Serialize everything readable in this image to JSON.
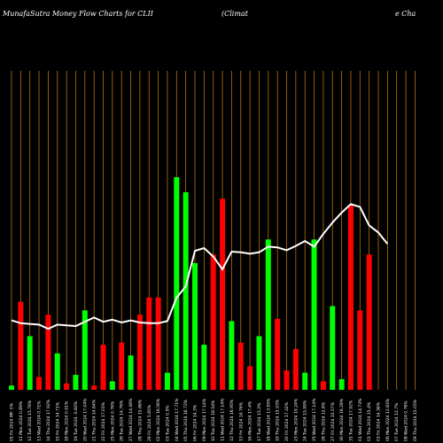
{
  "title_left": "MunafaSutra  Money Flow  Charts for CLII",
  "title_right_1": "(Climat",
  "title_right_2": "e  Cha",
  "chart_data": {
    "type": "bar",
    "bar_ylim": [
      0,
      100
    ],
    "line_ylim": [
      0,
      100
    ],
    "grid": "vertical",
    "colors": {
      "up": "#00ff00",
      "down": "#ff0000",
      "line": "#ffffff",
      "grid": "#b8730f",
      "background": "#000000"
    },
    "categories": [
      "05 Fri 2024 MF: 0%",
      "11 Mon 2024 0.89%",
      "12 Tue 2024 15.76%",
      "13 Wed 2024 0.71%",
      "14 Thu 2024 17.92%",
      "15 Fri 2024 14.71%",
      "18 Mon 2024 0.91%",
      "19 Tue 2024 -0.83%",
      "20 Wed 2024 17.04%",
      "21 Thu 2024 14.64%",
      "22 Fri 2024 17.03%",
      "25 Mon 2024 0.76%",
      "26 Tue 2024 14.76%",
      "27 Wed 2024 14.46%",
      "28 Thu 2024 15.86%",
      "29 Fri 2024 5.85%",
      "02 Mon 2024 16.56%",
      "03 Tue 2024 0.5%",
      "04 Wed 2024 17.71%",
      "05 Thu 2024 16.72%",
      "06 Fri 2024 14.3%",
      "09 Mon 2024 17.14%",
      "10 Tue 2024 18.54%",
      "11 Wed 2024 17.14%",
      "12 Thu 2024 16.95%",
      "13 Fri 2024 14.76%",
      "16 Mon 2024 17.4%",
      "17 Tue 2024 15.2%",
      "18 Wed 2024 13.95%",
      "19 Thu 2024 15.93%",
      "20 Fri 2024 17.32%",
      "23 Mon 2024 19.24%",
      "24 Tue 2024 15.99%",
      "25 Wed 2024 17.14%",
      "26 Thu 2024 12.6%",
      "27 Fri 2024 15.57%",
      "30 Mon 2024 16.28%",
      "31 Tue 2024 17.92%",
      "01 Wed 2024 14.73%",
      "02 Thu 2024 15.4%",
      "03 Fri 2024 14.36%",
      "06 Mon 2024 12.83%",
      "07 Tue 2024 12.7%",
      "08 Wed 2024 0.76%",
      "09 Thu 2024 15.05%"
    ],
    "bar_values": [
      2,
      41,
      25,
      6,
      35,
      17,
      3,
      7,
      37,
      2,
      21,
      4,
      22,
      16,
      35,
      43,
      43,
      8,
      99,
      92,
      59,
      21,
      63,
      89,
      32,
      22,
      11,
      25,
      70,
      33,
      9,
      19,
      8,
      70,
      4,
      39,
      5,
      86,
      37,
      63,
      0,
      0,
      0,
      0,
      0
    ],
    "bar_colors": [
      "green",
      "red",
      "green",
      "red",
      "red",
      "green",
      "red",
      "green",
      "green",
      "red",
      "red",
      "green",
      "red",
      "green",
      "red",
      "red",
      "red",
      "green",
      "green",
      "green",
      "green",
      "green",
      "red",
      "red",
      "green",
      "red",
      "red",
      "green",
      "green",
      "red",
      "red",
      "red",
      "green",
      "green",
      "red",
      "green",
      "green",
      "red",
      "red",
      "red",
      "red",
      "red",
      "red",
      "red",
      "red"
    ],
    "line_values": [
      49,
      47,
      46.5,
      46,
      43,
      46,
      45.5,
      45,
      48,
      51,
      48,
      49.5,
      47.5,
      49,
      47.5,
      47,
      47,
      48.5,
      65,
      73,
      98,
      100,
      94,
      85,
      97.5,
      97,
      96,
      97,
      101,
      100.5,
      98.5,
      101.5,
      105,
      101,
      110,
      118,
      125,
      131,
      129,
      116,
      111,
      103,
      0,
      0,
      0
    ]
  }
}
